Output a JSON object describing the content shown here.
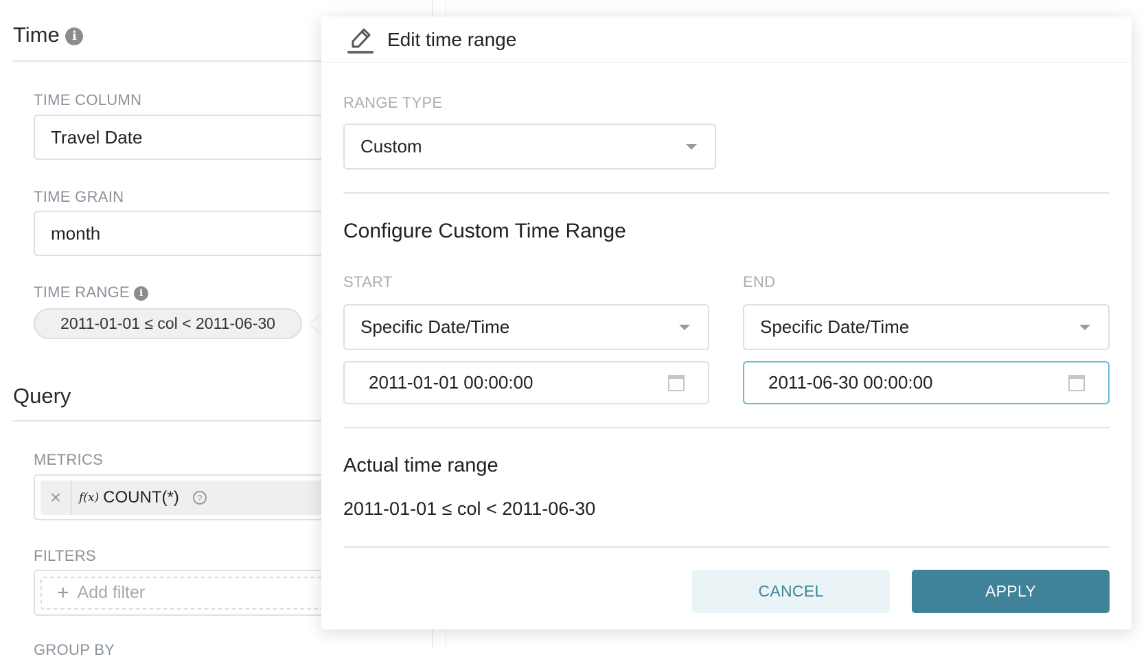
{
  "left": {
    "time_title": "Time",
    "time_column": {
      "label": "TIME COLUMN",
      "value": "Travel Date"
    },
    "time_grain": {
      "label": "TIME GRAIN",
      "value": "month"
    },
    "time_range": {
      "label": "TIME RANGE",
      "value": "2011-01-01 ≤ col < 2011-06-30"
    },
    "query_title": "Query",
    "metrics": {
      "label": "METRICS",
      "fx": "f(x)",
      "value": "COUNT(*)",
      "remove": "×",
      "help": "?"
    },
    "filters": {
      "label": "FILTERS",
      "add": "Add filter",
      "plus": "+"
    },
    "group_by": {
      "label": "GROUP BY"
    }
  },
  "modal": {
    "title": "Edit time range",
    "range_type": {
      "label": "RANGE TYPE",
      "value": "Custom"
    },
    "configure_title": "Configure Custom Time Range",
    "start": {
      "label": "START",
      "mode": "Specific Date/Time",
      "value": "2011-01-01 00:00:00"
    },
    "end": {
      "label": "END",
      "mode": "Specific Date/Time",
      "value": "2011-06-30 00:00:00"
    },
    "actual_title": "Actual time range",
    "actual_value": "2011-01-01 ≤ col < 2011-06-30",
    "cancel": "CANCEL",
    "apply": "APPLY"
  },
  "colors": {
    "primary": "#3f8299",
    "primary_light": "#eaf4f7",
    "focus_border": "#66bcd6"
  }
}
